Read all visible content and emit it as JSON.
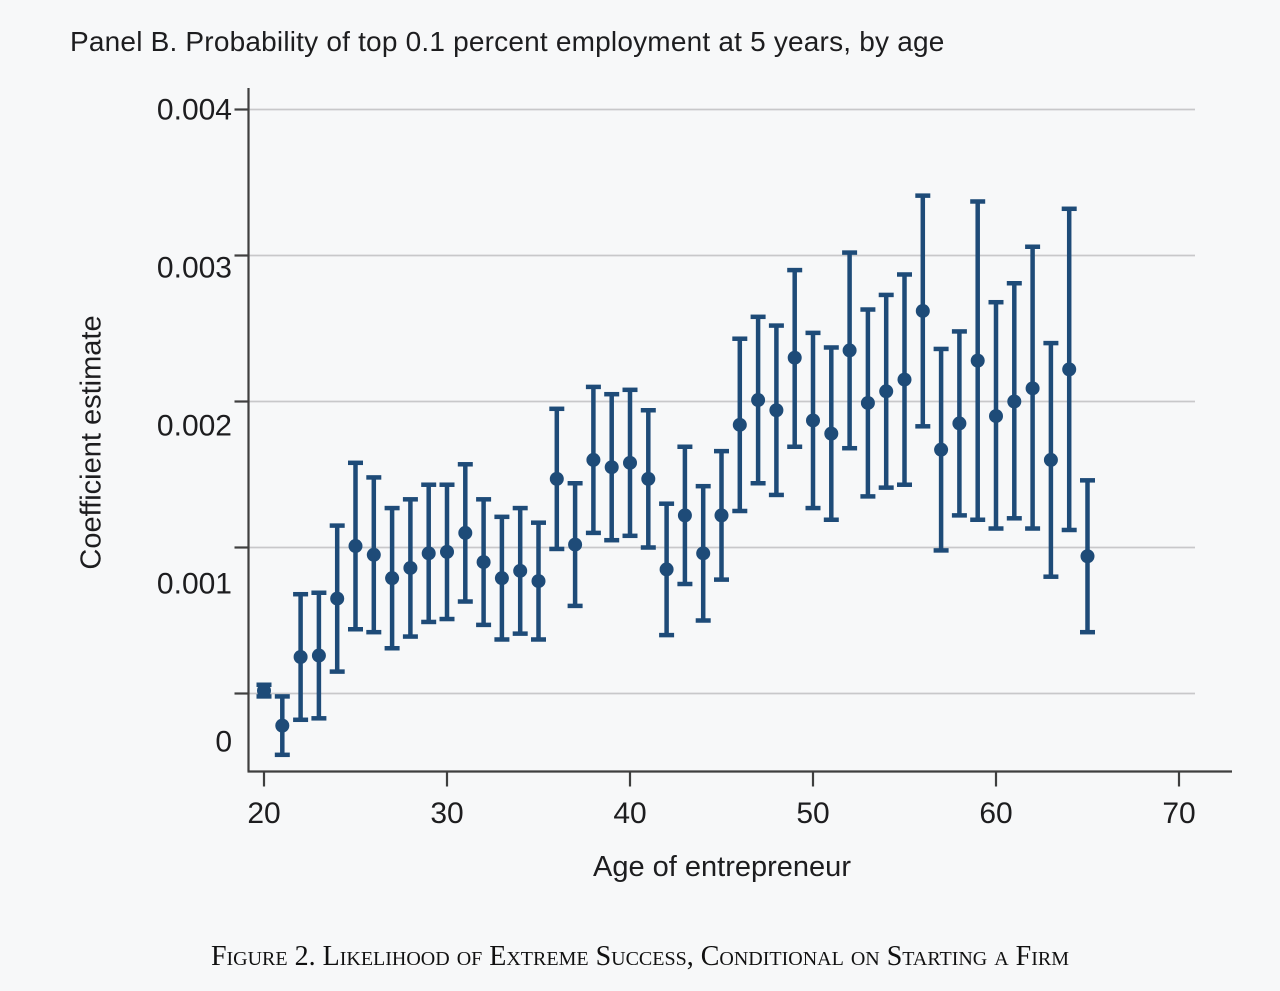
{
  "title": "Panel B. Probability of top 0.1 percent employment at 5 years, by age",
  "caption": "Figure 2. Likelihood of Extreme Success, Conditional on Starting a Firm",
  "colors": {
    "marker": "#1e4b78",
    "errorbar": "#1e4b78",
    "gridline": "#c8c8ca",
    "axis": "#3f3f3f",
    "text": "#1d1d1f",
    "background": "#f7f8f9"
  },
  "chart_data": {
    "type": "scatter",
    "subtype": "coefficient-plot-with-95ci-errorbars",
    "title": "Panel B. Probability of top 0.1 percent employment at 5 years, by age",
    "xlabel": "Age of entrepreneur",
    "ylabel": "Coefficient estimate",
    "xlim": [
      19,
      71
    ],
    "ylim": [
      -0.00055,
      0.00415
    ],
    "x_ticks": [
      20,
      30,
      40,
      50,
      60,
      70
    ],
    "y_ticks": [
      0.004,
      0.003,
      0.002,
      0.001,
      0
    ],
    "y_tick_labels": [
      "0.004",
      "0.003",
      "0.002",
      "0.001",
      "0"
    ],
    "grid": true,
    "legend": "none",
    "points": [
      {
        "age": 20,
        "est": 2e-05,
        "lo": -2e-05,
        "hi": 6e-05
      },
      {
        "age": 21,
        "est": -0.00022,
        "lo": -0.00042,
        "hi": -2e-05
      },
      {
        "age": 22,
        "est": 0.00025,
        "lo": -0.00018,
        "hi": 0.00068
      },
      {
        "age": 23,
        "est": 0.00026,
        "lo": -0.00017,
        "hi": 0.00069
      },
      {
        "age": 24,
        "est": 0.00065,
        "lo": 0.00015,
        "hi": 0.00115
      },
      {
        "age": 25,
        "est": 0.00101,
        "lo": 0.00044,
        "hi": 0.00158
      },
      {
        "age": 26,
        "est": 0.00095,
        "lo": 0.00042,
        "hi": 0.00148
      },
      {
        "age": 27,
        "est": 0.00079,
        "lo": 0.00031,
        "hi": 0.00127
      },
      {
        "age": 28,
        "est": 0.00086,
        "lo": 0.00039,
        "hi": 0.00133
      },
      {
        "age": 29,
        "est": 0.00096,
        "lo": 0.00049,
        "hi": 0.00143
      },
      {
        "age": 30,
        "est": 0.00097,
        "lo": 0.00051,
        "hi": 0.00143
      },
      {
        "age": 31,
        "est": 0.0011,
        "lo": 0.00063,
        "hi": 0.00157
      },
      {
        "age": 32,
        "est": 0.0009,
        "lo": 0.00047,
        "hi": 0.00133
      },
      {
        "age": 33,
        "est": 0.00079,
        "lo": 0.00037,
        "hi": 0.00121
      },
      {
        "age": 34,
        "est": 0.00084,
        "lo": 0.00041,
        "hi": 0.00127
      },
      {
        "age": 35,
        "est": 0.00077,
        "lo": 0.00037,
        "hi": 0.00117
      },
      {
        "age": 36,
        "est": 0.00147,
        "lo": 0.00099,
        "hi": 0.00195
      },
      {
        "age": 37,
        "est": 0.00102,
        "lo": 0.0006,
        "hi": 0.00144
      },
      {
        "age": 38,
        "est": 0.0016,
        "lo": 0.0011,
        "hi": 0.0021
      },
      {
        "age": 39,
        "est": 0.00155,
        "lo": 0.00105,
        "hi": 0.00205
      },
      {
        "age": 40,
        "est": 0.00158,
        "lo": 0.00108,
        "hi": 0.00208
      },
      {
        "age": 41,
        "est": 0.00147,
        "lo": 0.001,
        "hi": 0.00194
      },
      {
        "age": 42,
        "est": 0.00085,
        "lo": 0.0004,
        "hi": 0.0013
      },
      {
        "age": 43,
        "est": 0.00122,
        "lo": 0.00075,
        "hi": 0.00169
      },
      {
        "age": 44,
        "est": 0.00096,
        "lo": 0.0005,
        "hi": 0.00142
      },
      {
        "age": 45,
        "est": 0.00122,
        "lo": 0.00078,
        "hi": 0.00166
      },
      {
        "age": 46,
        "est": 0.00184,
        "lo": 0.00125,
        "hi": 0.00243
      },
      {
        "age": 47,
        "est": 0.00201,
        "lo": 0.00144,
        "hi": 0.00258
      },
      {
        "age": 48,
        "est": 0.00194,
        "lo": 0.00136,
        "hi": 0.00252
      },
      {
        "age": 49,
        "est": 0.0023,
        "lo": 0.00169,
        "hi": 0.0029
      },
      {
        "age": 50,
        "est": 0.00187,
        "lo": 0.00127,
        "hi": 0.00247
      },
      {
        "age": 51,
        "est": 0.00178,
        "lo": 0.00119,
        "hi": 0.00237
      },
      {
        "age": 52,
        "est": 0.00235,
        "lo": 0.00168,
        "hi": 0.00302
      },
      {
        "age": 53,
        "est": 0.00199,
        "lo": 0.00135,
        "hi": 0.00263
      },
      {
        "age": 54,
        "est": 0.00207,
        "lo": 0.00141,
        "hi": 0.00273
      },
      {
        "age": 55,
        "est": 0.00215,
        "lo": 0.00143,
        "hi": 0.00287
      },
      {
        "age": 56,
        "est": 0.00262,
        "lo": 0.00183,
        "hi": 0.00341
      },
      {
        "age": 57,
        "est": 0.00167,
        "lo": 0.00098,
        "hi": 0.00236
      },
      {
        "age": 58,
        "est": 0.00185,
        "lo": 0.00122,
        "hi": 0.00248
      },
      {
        "age": 59,
        "est": 0.00228,
        "lo": 0.00119,
        "hi": 0.00337
      },
      {
        "age": 60,
        "est": 0.0019,
        "lo": 0.00113,
        "hi": 0.00268
      },
      {
        "age": 61,
        "est": 0.002,
        "lo": 0.0012,
        "hi": 0.00281
      },
      {
        "age": 62,
        "est": 0.00209,
        "lo": 0.00113,
        "hi": 0.00306
      },
      {
        "age": 63,
        "est": 0.0016,
        "lo": 0.0008,
        "hi": 0.0024
      },
      {
        "age": 64,
        "est": 0.00222,
        "lo": 0.00112,
        "hi": 0.00332
      },
      {
        "age": 65,
        "est": 0.00094,
        "lo": 0.00042,
        "hi": 0.00146
      }
    ]
  }
}
